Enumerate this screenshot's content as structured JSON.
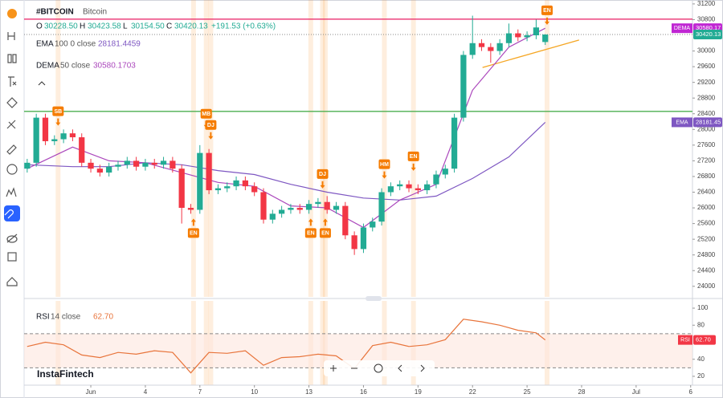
{
  "watermark": "InstaFintech",
  "chart_data": [
    {
      "type": "candlestick",
      "symbol": "#BITCOIN",
      "name": "Bitcoin",
      "ohlc": [
        {
          "key": "O",
          "value": 30228.5,
          "label": "30228.50"
        },
        {
          "key": "H",
          "value": 30423.58,
          "label": "30423.58"
        },
        {
          "key": "L",
          "value": 30154.5,
          "label": "30154.50"
        },
        {
          "key": "C",
          "value": 30420.13,
          "label": "30420.13"
        }
      ],
      "change": "+191.53 (+0.63%)",
      "up_color": "#22ab94",
      "down_color": "#f23645",
      "x": [
        -2.5,
        -2,
        -1.5,
        -1,
        -0.5,
        0,
        0.5,
        1,
        1.5,
        2,
        2.5,
        3,
        3.5,
        4,
        4.5,
        5,
        5.5,
        6,
        6.5,
        7,
        7.5,
        8,
        8.5,
        9,
        9.5,
        10,
        10.5,
        11,
        11.5,
        12,
        12.5,
        13,
        13.5,
        14,
        14.5,
        15,
        15.5,
        16,
        16.5,
        17,
        17.5,
        18,
        18.5,
        19,
        19.5,
        20,
        20.5,
        21,
        21.5,
        22,
        22.5,
        23,
        23.5,
        24,
        24.5,
        25,
        25.5,
        26
      ],
      "open": [
        27000,
        27150,
        28300,
        27700,
        27750,
        27900,
        27800,
        27150,
        27000,
        26900,
        27050,
        27100,
        27200,
        27050,
        27150,
        27100,
        27200,
        27000,
        26000,
        25950,
        27400,
        26450,
        26500,
        26550,
        26700,
        26550,
        26400,
        25700,
        25850,
        25950,
        26000,
        25950,
        26100,
        26150,
        25950,
        26050,
        25300,
        24950,
        25500,
        25650,
        26400,
        26550,
        26600,
        26500,
        26450,
        26600,
        26850,
        27000,
        28300,
        29900,
        30200,
        30100,
        30000,
        30200,
        30450,
        30350,
        30400,
        30228.5
      ],
      "high": [
        27250,
        28400,
        28400,
        27850,
        28000,
        28000,
        27900,
        27250,
        27100,
        27150,
        27200,
        27300,
        27300,
        27250,
        27250,
        27300,
        27300,
        27100,
        26100,
        27600,
        27500,
        26600,
        26650,
        26800,
        26800,
        26650,
        26500,
        25950,
        26050,
        26100,
        26100,
        26200,
        26250,
        26300,
        26150,
        26150,
        25400,
        25600,
        25750,
        26500,
        26650,
        26700,
        26700,
        26600,
        26700,
        26950,
        27100,
        28400,
        30000,
        30900,
        30300,
        30200,
        30300,
        30700,
        30550,
        30500,
        30800,
        30423.58
      ],
      "low": [
        26900,
        27050,
        27600,
        27600,
        27650,
        27700,
        27050,
        26900,
        26800,
        26800,
        26950,
        27000,
        26950,
        26950,
        27000,
        27000,
        26900,
        25600,
        25850,
        25850,
        26350,
        26350,
        26400,
        26450,
        26450,
        26300,
        25600,
        25600,
        25750,
        25850,
        25850,
        25850,
        26000,
        25850,
        25850,
        25200,
        24800,
        24850,
        25400,
        25550,
        26300,
        26450,
        26400,
        26350,
        26350,
        26500,
        26750,
        26900,
        28200,
        29800,
        30000,
        29700,
        29900,
        30100,
        30250,
        30250,
        30300,
        30154.5
      ],
      "close": [
        27150,
        28300,
        27700,
        27750,
        27900,
        27800,
        27150,
        27000,
        26900,
        27050,
        27100,
        27200,
        27050,
        27150,
        27100,
        27200,
        27000,
        26000,
        25950,
        27400,
        26450,
        26500,
        26550,
        26700,
        26550,
        26400,
        25700,
        25850,
        25950,
        26000,
        25950,
        26100,
        26150,
        25950,
        26050,
        25300,
        24950,
        25500,
        25650,
        26400,
        26550,
        26600,
        26500,
        26450,
        26600,
        26850,
        27000,
        28300,
        29900,
        30200,
        30100,
        30000,
        30200,
        30450,
        30350,
        30400,
        30600,
        30420.13
      ],
      "series": [
        {
          "name": "EMA",
          "params": "100 0 close",
          "last": 28181.4459,
          "color": "#7e57c2",
          "x": [
            -2.5,
            0,
            2,
            4,
            6,
            8,
            10,
            12,
            14,
            16,
            18,
            20,
            22,
            24,
            26
          ],
          "values": [
            27100,
            27050,
            27050,
            27150,
            27100,
            26950,
            26850,
            26600,
            26400,
            26250,
            26200,
            26300,
            26750,
            27300,
            28181
          ]
        },
        {
          "name": "DEMA",
          "params": "50 close",
          "last": 30580.1703,
          "color": "#ab47bc",
          "x": [
            -2.5,
            0,
            2,
            4,
            6,
            8,
            10,
            12,
            14,
            16,
            18,
            20,
            22,
            24,
            26
          ],
          "values": [
            27000,
            27550,
            27200,
            27150,
            26900,
            26650,
            26550,
            26050,
            26000,
            25500,
            26200,
            26600,
            29000,
            30100,
            30580
          ]
        }
      ],
      "hlines": [
        {
          "value": 30811,
          "color": "#e91e63"
        },
        {
          "value": 28460,
          "color": "#4caf50"
        }
      ],
      "trendline": {
        "x": [
          22.55,
          27.86
        ],
        "values": [
          29580,
          30280
        ],
        "color": "#f5a623"
      },
      "event_color": "#f57c00",
      "events": [
        {
          "label": "SB",
          "x": -0.8,
          "side": "above"
        },
        {
          "label": "EN",
          "x": 6.65,
          "side": "below"
        },
        {
          "label": "MB",
          "x": 7.35,
          "side": "above"
        },
        {
          "label": "DJ",
          "x": 7.6,
          "side": "above"
        },
        {
          "label": "EN",
          "x": 13.1,
          "side": "below"
        },
        {
          "label": "DJ",
          "x": 13.75,
          "side": "above"
        },
        {
          "label": "EN",
          "x": 13.9,
          "side": "below"
        },
        {
          "label": "HM",
          "x": 17.15,
          "side": "above"
        },
        {
          "label": "EN",
          "x": 18.75,
          "side": "above"
        },
        {
          "label": "EN",
          "x": 26.1,
          "side": "above"
        }
      ],
      "price_tags": [
        {
          "name": "DEMA",
          "value": 30580.17,
          "color": "#c026d3"
        },
        {
          "value": 30420.13,
          "color": "#22ab94"
        },
        {
          "name": "EMA",
          "value": 28181.45,
          "color": "#7e57c2"
        }
      ],
      "ylim": [
        23730,
        31300
      ],
      "yticks": [
        24000,
        24400,
        24800,
        25200,
        25600,
        26000,
        26400,
        26800,
        27200,
        27600,
        28000,
        28400,
        28800,
        29200,
        29600,
        30000,
        30800,
        31200
      ],
      "xlim": [
        -2.67,
        34.1
      ],
      "xticks": [
        {
          "value": 1,
          "label": "Jun"
        },
        4,
        7,
        10,
        13,
        16,
        19,
        22,
        25,
        28,
        {
          "value": 31,
          "label": "Jul"
        },
        {
          "value": 34,
          "label": "6"
        }
      ]
    },
    {
      "type": "line",
      "x": [
        -2.5,
        -1.5,
        -0.5,
        0.5,
        1.5,
        2.5,
        3.5,
        4.5,
        5.5,
        6.5,
        7.5,
        8.5,
        9.5,
        10.5,
        11.5,
        12.5,
        13.5,
        14.5,
        15.5,
        16.5,
        17.5,
        18.5,
        19.5,
        20.5,
        21.5,
        22.5,
        23.5,
        24.5,
        25.5,
        26
      ],
      "series": [
        {
          "name": "RSI",
          "params": "14 close",
          "last": {
            "value": 62.7,
            "label": "62.70"
          },
          "color": "#e8743b",
          "values": [
            55,
            60,
            57,
            45,
            42,
            48,
            46,
            50,
            48,
            24,
            48,
            47,
            50,
            33,
            42,
            43,
            46,
            44,
            29,
            56,
            60,
            55,
            57,
            63,
            87,
            84,
            80,
            74,
            71,
            62.7
          ]
        }
      ],
      "bands": [
        30,
        70
      ],
      "band_color": "#fde6dd",
      "ylim": [
        9.6,
        108.5
      ],
      "yticks": [
        20,
        40,
        80,
        100
      ]
    }
  ]
}
